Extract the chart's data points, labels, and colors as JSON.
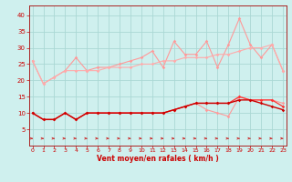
{
  "x": [
    0,
    1,
    2,
    3,
    4,
    5,
    6,
    7,
    8,
    9,
    10,
    11,
    12,
    13,
    14,
    15,
    16,
    17,
    18,
    19,
    20,
    21,
    22,
    23
  ],
  "line1": [
    26,
    19,
    21,
    23,
    27,
    23,
    24,
    24,
    25,
    26,
    27,
    29,
    24,
    32,
    28,
    28,
    32,
    24,
    31,
    39,
    31,
    27,
    31,
    23
  ],
  "line2": [
    26,
    19,
    21,
    23,
    23,
    23,
    23,
    24,
    24,
    24,
    25,
    25,
    26,
    26,
    27,
    27,
    27,
    28,
    28,
    29,
    30,
    30,
    31,
    23
  ],
  "line3": [
    10,
    8,
    8,
    10,
    8,
    10,
    10,
    10,
    10,
    10,
    10,
    10,
    10,
    11,
    12,
    13,
    11,
    10,
    9,
    15,
    14,
    14,
    14,
    13
  ],
  "line4": [
    10,
    8,
    8,
    10,
    8,
    10,
    10,
    10,
    10,
    10,
    10,
    10,
    10,
    11,
    12,
    13,
    13,
    13,
    13,
    15,
    14,
    14,
    14,
    12
  ],
  "line5": [
    10,
    8,
    8,
    10,
    8,
    10,
    10,
    10,
    10,
    10,
    10,
    10,
    10,
    11,
    12,
    13,
    13,
    13,
    13,
    14,
    14,
    13,
    12,
    11
  ],
  "bg_color": "#cff0ee",
  "grid_color": "#aad8d4",
  "line1_color": "#ff9999",
  "line2_color": "#ffaaaa",
  "line3_color": "#ff9999",
  "line4_color": "#ff3333",
  "line5_color": "#cc0000",
  "arrow_color": "#cc0000",
  "xlabel": "Vent moyen/en rafales ( km/h )",
  "yticks": [
    5,
    10,
    15,
    20,
    25,
    30,
    35,
    40
  ],
  "xticks": [
    0,
    1,
    2,
    3,
    4,
    5,
    6,
    7,
    8,
    9,
    10,
    11,
    12,
    13,
    14,
    15,
    16,
    17,
    18,
    19,
    20,
    21,
    22,
    23
  ],
  "ylim": [
    0,
    43
  ],
  "xlim": [
    -0.3,
    23.3
  ]
}
